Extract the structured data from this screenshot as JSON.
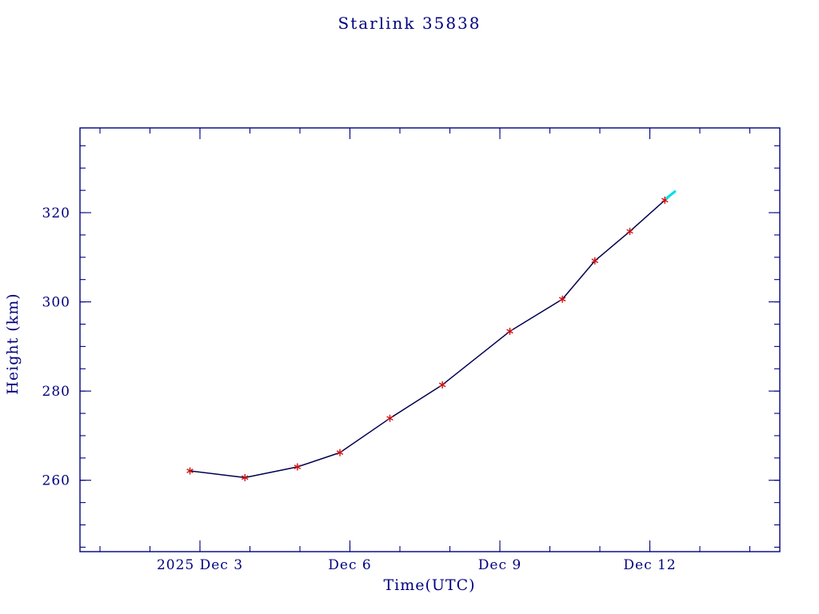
{
  "colors": {
    "axis": "#000080",
    "line": "#000050",
    "marker": "#cc1111",
    "latest": "#00e0e8",
    "background": "#ffffff"
  },
  "chart_data": {
    "type": "line",
    "title": "Starlink 35838",
    "xlabel": "Time(UTC)",
    "ylabel": "Height (km)",
    "xlim": [
      0.6,
      14.6
    ],
    "ylim": [
      244,
      339
    ],
    "x_minor_step": 1,
    "y_minor_step": 5,
    "x_major_ticks": [
      {
        "value": 3,
        "label": "2025 Dec  3"
      },
      {
        "value": 6,
        "label": "Dec  6"
      },
      {
        "value": 9,
        "label": "Dec  9"
      },
      {
        "value": 12,
        "label": "Dec 12"
      }
    ],
    "y_major_ticks": [
      {
        "value": 260,
        "label": "260"
      },
      {
        "value": 280,
        "label": "280"
      },
      {
        "value": 300,
        "label": "300"
      },
      {
        "value": 320,
        "label": "320"
      }
    ],
    "series": [
      {
        "name": "height",
        "x": [
          2.8,
          3.9,
          4.95,
          5.8,
          6.8,
          7.85,
          9.2,
          10.25,
          10.9,
          11.6,
          12.3
        ],
        "y": [
          262.1,
          260.6,
          263.0,
          266.2,
          273.9,
          281.4,
          293.4,
          300.6,
          309.2,
          315.8,
          322.8
        ]
      }
    ],
    "latest_point": {
      "x": 12.42,
      "y": 324.0
    }
  }
}
